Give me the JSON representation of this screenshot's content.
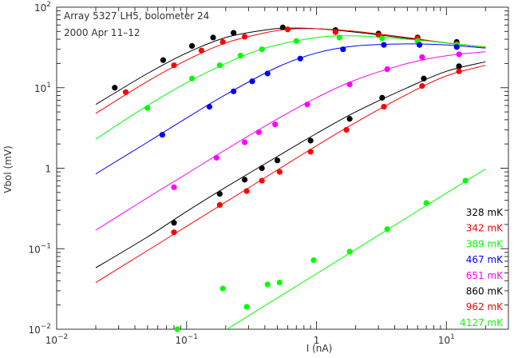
{
  "chart_data": {
    "type": "scatter",
    "title_lines": [
      "Array 5327 LH5, bolometer 24",
      "2000 Apr 11–12"
    ],
    "xlabel": "I (nA)",
    "ylabel": "Vbol (mV)",
    "xscale": "log",
    "yscale": "log",
    "xlim": [
      0.01,
      30
    ],
    "ylim": [
      0.01,
      100
    ],
    "x_ticks": [
      {
        "v": 0.01,
        "label": "10",
        "sup": "−2"
      },
      {
        "v": 0.1,
        "label": "10",
        "sup": "−1"
      },
      {
        "v": 1,
        "label": "1",
        "sup": ""
      },
      {
        "v": 10,
        "label": "10",
        "sup": "1"
      }
    ],
    "y_ticks": [
      {
        "v": 0.01,
        "label": "10",
        "sup": "−2"
      },
      {
        "v": 0.1,
        "label": "10",
        "sup": "−1"
      },
      {
        "v": 1,
        "label": "1",
        "sup": ""
      },
      {
        "v": 10,
        "label": "10",
        "sup": "1"
      },
      {
        "v": 100,
        "label": "10",
        "sup": "2"
      }
    ],
    "legend_position": "lower-right",
    "series": [
      {
        "name": "328 mK",
        "color": "#000000",
        "points": [
          [
            0.028,
            10
          ],
          [
            0.066,
            22
          ],
          [
            0.11,
            33
          ],
          [
            0.16,
            42
          ],
          [
            0.23,
            48
          ],
          [
            0.55,
            56
          ],
          [
            1.4,
            52
          ],
          [
            3.0,
            47
          ],
          [
            6.0,
            42
          ],
          [
            12,
            37
          ]
        ],
        "curve": [
          [
            0.02,
            6.2
          ],
          [
            0.05,
            15
          ],
          [
            0.1,
            27
          ],
          [
            0.2,
            42
          ],
          [
            0.4,
            52
          ],
          [
            0.6,
            55
          ],
          [
            1,
            54
          ],
          [
            2,
            49
          ],
          [
            5,
            41
          ],
          [
            10,
            36
          ],
          [
            20,
            32
          ]
        ]
      },
      {
        "name": "342 mK",
        "color": "#ff0000",
        "points": [
          [
            0.034,
            8.8
          ],
          [
            0.08,
            19
          ],
          [
            0.13,
            29
          ],
          [
            0.19,
            37
          ],
          [
            0.28,
            43
          ],
          [
            0.6,
            53
          ],
          [
            1.4,
            49
          ],
          [
            3.0,
            45
          ],
          [
            6.0,
            41
          ],
          [
            12,
            35
          ]
        ],
        "curve": [
          [
            0.02,
            4.8
          ],
          [
            0.05,
            12
          ],
          [
            0.1,
            22
          ],
          [
            0.2,
            36
          ],
          [
            0.4,
            48
          ],
          [
            0.6,
            53
          ],
          [
            1,
            54
          ],
          [
            2,
            50
          ],
          [
            5,
            42
          ],
          [
            10,
            36
          ],
          [
            20,
            32
          ]
        ]
      },
      {
        "name": "389 mK",
        "color": "#00ff00",
        "points": [
          [
            0.05,
            5.6
          ],
          [
            0.11,
            13
          ],
          [
            0.18,
            19
          ],
          [
            0.26,
            25
          ],
          [
            0.38,
            30
          ],
          [
            0.7,
            38
          ],
          [
            1.5,
            42
          ],
          [
            3.2,
            41
          ],
          [
            6.0,
            38
          ],
          [
            12,
            34
          ]
        ],
        "curve": [
          [
            0.02,
            2.3
          ],
          [
            0.05,
            6
          ],
          [
            0.1,
            11.5
          ],
          [
            0.2,
            20
          ],
          [
            0.4,
            31
          ],
          [
            1,
            42
          ],
          [
            2,
            44
          ],
          [
            5,
            40
          ],
          [
            10,
            36
          ],
          [
            20,
            32
          ]
        ]
      },
      {
        "name": "467 mK",
        "color": "#0000ff",
        "points": [
          [
            0.065,
            2.6
          ],
          [
            0.15,
            5.8
          ],
          [
            0.23,
            9
          ],
          [
            0.32,
            12
          ],
          [
            0.42,
            15
          ],
          [
            0.75,
            23
          ],
          [
            1.6,
            30
          ],
          [
            3.3,
            34
          ],
          [
            6.2,
            34
          ],
          [
            12,
            32
          ]
        ],
        "curve": [
          [
            0.02,
            0.85
          ],
          [
            0.05,
            2.1
          ],
          [
            0.1,
            4.2
          ],
          [
            0.2,
            8.2
          ],
          [
            0.5,
            18
          ],
          [
            1,
            27
          ],
          [
            2,
            33
          ],
          [
            5,
            35
          ],
          [
            10,
            34
          ],
          [
            20,
            31
          ]
        ]
      },
      {
        "name": "651 mK",
        "color": "#ff00ff",
        "points": [
          [
            0.08,
            0.58
          ],
          [
            0.17,
            1.35
          ],
          [
            0.28,
            2.1
          ],
          [
            0.36,
            2.8
          ],
          [
            0.48,
            3.5
          ],
          [
            0.85,
            6.2
          ],
          [
            1.8,
            11
          ],
          [
            3.5,
            17
          ],
          [
            6.5,
            24
          ],
          [
            12.5,
            26
          ]
        ],
        "curve": [
          [
            0.02,
            0.17
          ],
          [
            0.05,
            0.43
          ],
          [
            0.1,
            0.85
          ],
          [
            0.2,
            1.7
          ],
          [
            0.5,
            4.1
          ],
          [
            1,
            7.5
          ],
          [
            2,
            12.5
          ],
          [
            5,
            20
          ],
          [
            10,
            25
          ],
          [
            20,
            28
          ]
        ]
      },
      {
        "name": "860 mK",
        "color": "#000000",
        "points": [
          [
            0.08,
            0.21
          ],
          [
            0.18,
            0.48
          ],
          [
            0.28,
            0.72
          ],
          [
            0.38,
            1.0
          ],
          [
            0.5,
            1.25
          ],
          [
            0.9,
            2.2
          ],
          [
            1.8,
            4.1
          ],
          [
            3.2,
            7.5
          ],
          [
            6.7,
            13
          ],
          [
            12.5,
            18.5
          ]
        ],
        "curve": [
          [
            0.02,
            0.058
          ],
          [
            0.05,
            0.14
          ],
          [
            0.1,
            0.29
          ],
          [
            0.2,
            0.58
          ],
          [
            0.5,
            1.4
          ],
          [
            1,
            2.7
          ],
          [
            2,
            5
          ],
          [
            5,
            10
          ],
          [
            10,
            16
          ],
          [
            20,
            21
          ]
        ]
      },
      {
        "name": "962 mK",
        "color": "#ff0000",
        "points": [
          [
            0.08,
            0.16
          ],
          [
            0.18,
            0.35
          ],
          [
            0.29,
            0.52
          ],
          [
            0.38,
            0.7
          ],
          [
            0.52,
            0.9
          ],
          [
            0.9,
            1.6
          ],
          [
            1.7,
            3.0
          ],
          [
            3.3,
            5.8
          ],
          [
            6.5,
            10.5
          ],
          [
            12.5,
            16
          ]
        ],
        "curve": [
          [
            0.02,
            0.038
          ],
          [
            0.05,
            0.095
          ],
          [
            0.1,
            0.19
          ],
          [
            0.2,
            0.38
          ],
          [
            0.5,
            0.95
          ],
          [
            1,
            1.9
          ],
          [
            2,
            3.7
          ],
          [
            5,
            8.3
          ],
          [
            10,
            14
          ],
          [
            20,
            19
          ]
        ]
      },
      {
        "name": "4127 mK",
        "color": "#00ff00",
        "points": [
          [
            0.085,
            0.01
          ],
          [
            0.19,
            0.032
          ],
          [
            0.29,
            0.019
          ],
          [
            0.42,
            0.036
          ],
          [
            0.52,
            0.038
          ],
          [
            0.95,
            0.072
          ],
          [
            1.8,
            0.092
          ],
          [
            3.5,
            0.175
          ],
          [
            7,
            0.37
          ],
          [
            14,
            0.7
          ]
        ],
        "curve": [
          [
            0.2,
            0.0098
          ],
          [
            0.5,
            0.0245
          ],
          [
            1,
            0.049
          ],
          [
            2,
            0.098
          ],
          [
            5,
            0.245
          ],
          [
            10,
            0.49
          ],
          [
            20,
            0.98
          ]
        ]
      }
    ]
  }
}
